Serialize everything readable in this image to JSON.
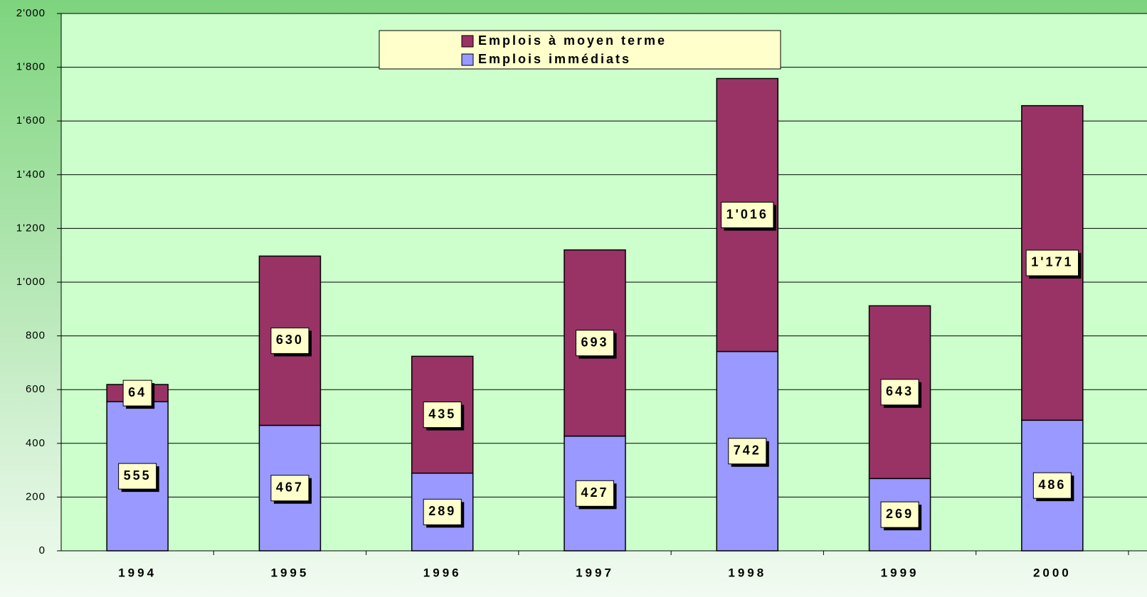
{
  "chart_data": {
    "type": "stacked_bar",
    "categories": [
      "1994",
      "1995",
      "1996",
      "1997",
      "1998",
      "1999",
      "2000"
    ],
    "series": [
      {
        "name": "Emplois immédiats",
        "color": "#9999ff",
        "values": [
          555,
          467,
          289,
          427,
          742,
          269,
          486
        ]
      },
      {
        "name": "Emplois à moyen terme",
        "color": "#993366",
        "values": [
          64,
          630,
          435,
          693,
          1016,
          643,
          1171
        ],
        "value_labels": [
          "64",
          "630",
          "435",
          "693",
          "1'016",
          "643",
          "1'171"
        ]
      }
    ],
    "ylim": [
      0,
      2000
    ],
    "yticks": [
      0,
      200,
      400,
      600,
      800,
      {
        "value": 1000,
        "label": "1'000"
      },
      {
        "value": 1200,
        "label": "1'200"
      },
      {
        "value": 1400,
        "label": "1'400"
      },
      {
        "value": 1600,
        "label": "1'600"
      },
      {
        "value": 1800,
        "label": "1'800"
      },
      {
        "value": 2000,
        "label": "2'000"
      }
    ],
    "grid": true,
    "legend": "top"
  }
}
